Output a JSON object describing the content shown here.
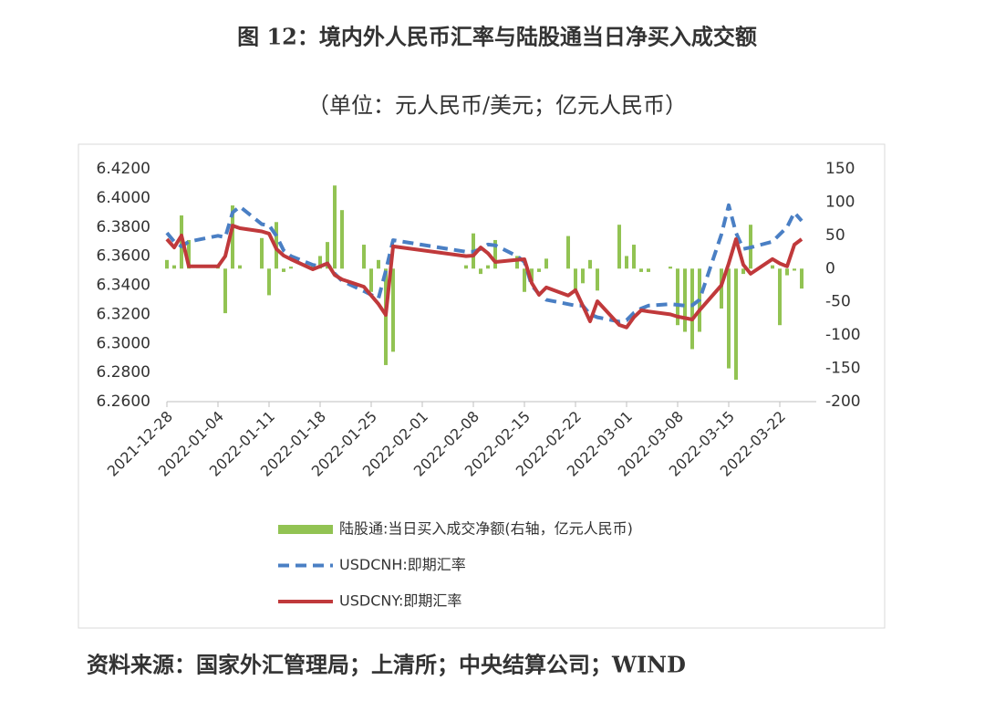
{
  "chart_data": {
    "type": "bar_line_dual",
    "title": "图 12：境内外人民币汇率与陆股通当日净买入成交额",
    "subtitle": "（单位：元人民币/美元；亿元人民币）",
    "source": "资料来源：国家外汇管理局；上清所；中央结算公司；WIND",
    "x": [
      "2021-12-28",
      "2021-12-29",
      "2021-12-30",
      "2021-12-31",
      "2022-01-04",
      "2022-01-05",
      "2022-01-06",
      "2022-01-07",
      "2022-01-10",
      "2022-01-11",
      "2022-01-12",
      "2022-01-13",
      "2022-01-14",
      "2022-01-17",
      "2022-01-18",
      "2022-01-19",
      "2022-01-20",
      "2022-01-21",
      "2022-01-24",
      "2022-01-25",
      "2022-01-26",
      "2022-01-27",
      "2022-01-28",
      "2022-02-07",
      "2022-02-08",
      "2022-02-09",
      "2022-02-10",
      "2022-02-11",
      "2022-02-14",
      "2022-02-15",
      "2022-02-16",
      "2022-02-17",
      "2022-02-18",
      "2022-02-21",
      "2022-02-22",
      "2022-02-23",
      "2022-02-24",
      "2022-02-25",
      "2022-02-28",
      "2022-03-01",
      "2022-03-02",
      "2022-03-03",
      "2022-03-04",
      "2022-03-07",
      "2022-03-08",
      "2022-03-09",
      "2022-03-10",
      "2022-03-11",
      "2022-03-14",
      "2022-03-15",
      "2022-03-16",
      "2022-03-17",
      "2022-03-18",
      "2022-03-21",
      "2022-03-22",
      "2022-03-23",
      "2022-03-24",
      "2022-03-25"
    ],
    "xlim": [
      "2021-12-28",
      "2022-03-27"
    ],
    "xticks": [
      "2021-12-28",
      "2022-01-04",
      "2022-01-11",
      "2022-01-18",
      "2022-01-25",
      "2022-02-01",
      "2022-02-08",
      "2022-02-15",
      "2022-02-22",
      "2022-03-01",
      "2022-03-08",
      "2022-03-15",
      "2022-03-22"
    ],
    "ylim": [
      6.26,
      6.42
    ],
    "yticks": [
      {
        "value": 6.26,
        "label": "6.2600"
      },
      {
        "value": 6.28,
        "label": "6.2800"
      },
      {
        "value": 6.3,
        "label": "6.3000"
      },
      {
        "value": 6.32,
        "label": "6.3200"
      },
      {
        "value": 6.34,
        "label": "6.3400"
      },
      {
        "value": 6.36,
        "label": "6.3600"
      },
      {
        "value": 6.38,
        "label": "6.3800"
      },
      {
        "value": 6.4,
        "label": "6.4000"
      },
      {
        "value": 6.42,
        "label": "6.4200"
      }
    ],
    "y2lim": [
      -200,
      150
    ],
    "y2ticks": [
      -200,
      -150,
      -100,
      -50,
      0,
      50,
      100,
      150
    ],
    "legend": "bottom",
    "series": [
      {
        "name": "陆股通:当日买入成交净额(右轴，亿元人民币)",
        "kind": "bar",
        "axis": "y2",
        "color": "#92c353",
        "values": [
          13,
          5,
          80,
          43,
          3,
          -67,
          95,
          5,
          46,
          -40,
          70,
          -5,
          3,
          5,
          19,
          40,
          125,
          88,
          36,
          -35,
          13,
          -145,
          -125,
          5,
          53,
          -8,
          5,
          43,
          19,
          -35,
          -19,
          -5,
          15,
          49,
          -35,
          -22,
          13,
          -33,
          66,
          19,
          36,
          -5,
          -5,
          3,
          -85,
          -95,
          -121,
          -95,
          -60,
          -150,
          -167,
          -8,
          66,
          5,
          -85,
          -10,
          -3,
          -30
        ]
      },
      {
        "name": "USDCNH:即期汇率",
        "kind": "line",
        "dash": true,
        "color": "#4a7fc4",
        "values": [
          6.376,
          6.37,
          6.3667,
          6.37,
          6.374,
          6.373,
          6.39,
          6.394,
          6.382,
          6.3812,
          6.374,
          6.364,
          6.36,
          6.354,
          6.353,
          6.355,
          6.348,
          6.343,
          6.336,
          6.3334,
          6.331,
          6.35,
          6.371,
          6.363,
          6.363,
          6.365,
          6.368,
          6.3675,
          6.36,
          6.356,
          6.34,
          6.334,
          6.33,
          6.327,
          6.326,
          6.326,
          6.32,
          6.318,
          6.315,
          6.316,
          6.321,
          6.324,
          6.326,
          6.327,
          6.3265,
          6.326,
          6.3262,
          6.33,
          6.375,
          6.395,
          6.376,
          6.365,
          6.366,
          6.37,
          6.375,
          6.38,
          6.39,
          6.3843
        ]
      },
      {
        "name": "USDCNY:即期汇率",
        "kind": "line",
        "dash": false,
        "color": "#c0393b",
        "values": [
          6.3717,
          6.366,
          6.3742,
          6.353,
          6.353,
          6.36,
          6.381,
          6.3792,
          6.377,
          6.3755,
          6.365,
          6.3604,
          6.3579,
          6.351,
          6.353,
          6.355,
          6.347,
          6.344,
          6.339,
          6.333,
          6.3271,
          6.3196,
          6.3667,
          6.36,
          6.3604,
          6.366,
          6.362,
          6.356,
          6.3575,
          6.3579,
          6.3416,
          6.3334,
          6.3385,
          6.333,
          6.3366,
          6.326,
          6.3152,
          6.329,
          6.3127,
          6.311,
          6.318,
          6.3228,
          6.322,
          6.32,
          6.3184,
          6.3175,
          6.3165,
          6.3228,
          6.34,
          6.355,
          6.3717,
          6.3541,
          6.3479,
          6.358,
          6.355,
          6.353,
          6.3679,
          6.3717
        ]
      }
    ]
  }
}
